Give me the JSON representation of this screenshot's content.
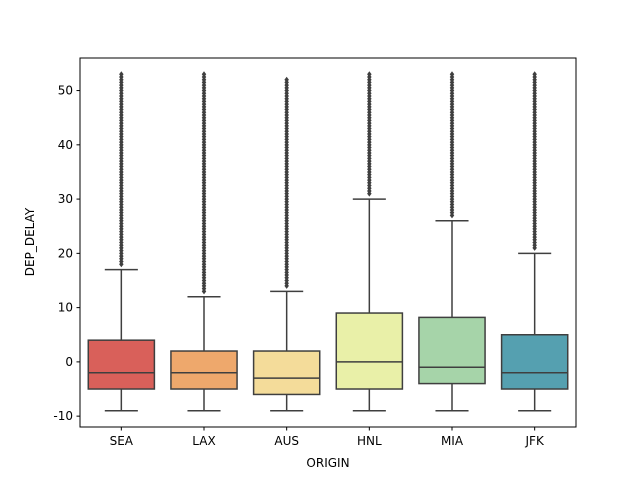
{
  "chart_data": {
    "type": "box",
    "xlabel": "ORIGIN",
    "ylabel": "DEP_DELAY",
    "ylim": [
      -12,
      56
    ],
    "yticks": [
      -10,
      0,
      10,
      20,
      30,
      40,
      50
    ],
    "grid": false,
    "categories": [
      "SEA",
      "LAX",
      "AUS",
      "HNL",
      "MIA",
      "JFK"
    ],
    "boxes": [
      {
        "category": "SEA",
        "color": "#d9605a",
        "whisker_low": -9,
        "q1": -5,
        "median": -2,
        "q3": 4,
        "whisker_high": 17,
        "fliers_min": 18,
        "fliers_max": 53
      },
      {
        "category": "LAX",
        "color": "#eea86c",
        "whisker_low": -9,
        "q1": -5,
        "median": -2,
        "q3": 2,
        "whisker_high": 12,
        "fliers_min": 13,
        "fliers_max": 53
      },
      {
        "category": "AUS",
        "color": "#f4dc9a",
        "whisker_low": -9,
        "q1": -6,
        "median": -3,
        "q3": 2,
        "whisker_high": 13,
        "fliers_min": 14,
        "fliers_max": 52
      },
      {
        "category": "HNL",
        "color": "#e9f0a8",
        "whisker_low": -9,
        "q1": -5,
        "median": 0,
        "q3": 9,
        "whisker_high": 30,
        "fliers_min": 31,
        "fliers_max": 53
      },
      {
        "category": "MIA",
        "color": "#a6d4a9",
        "whisker_low": -9,
        "q1": -4,
        "median": -1,
        "q3": 8.2,
        "whisker_high": 26,
        "fliers_min": 27,
        "fliers_max": 53
      },
      {
        "category": "JFK",
        "color": "#55a0b0",
        "whisker_low": -9,
        "q1": -5,
        "median": -2,
        "q3": 5,
        "whisker_high": 20,
        "fliers_min": 21,
        "fliers_max": 53
      }
    ]
  }
}
